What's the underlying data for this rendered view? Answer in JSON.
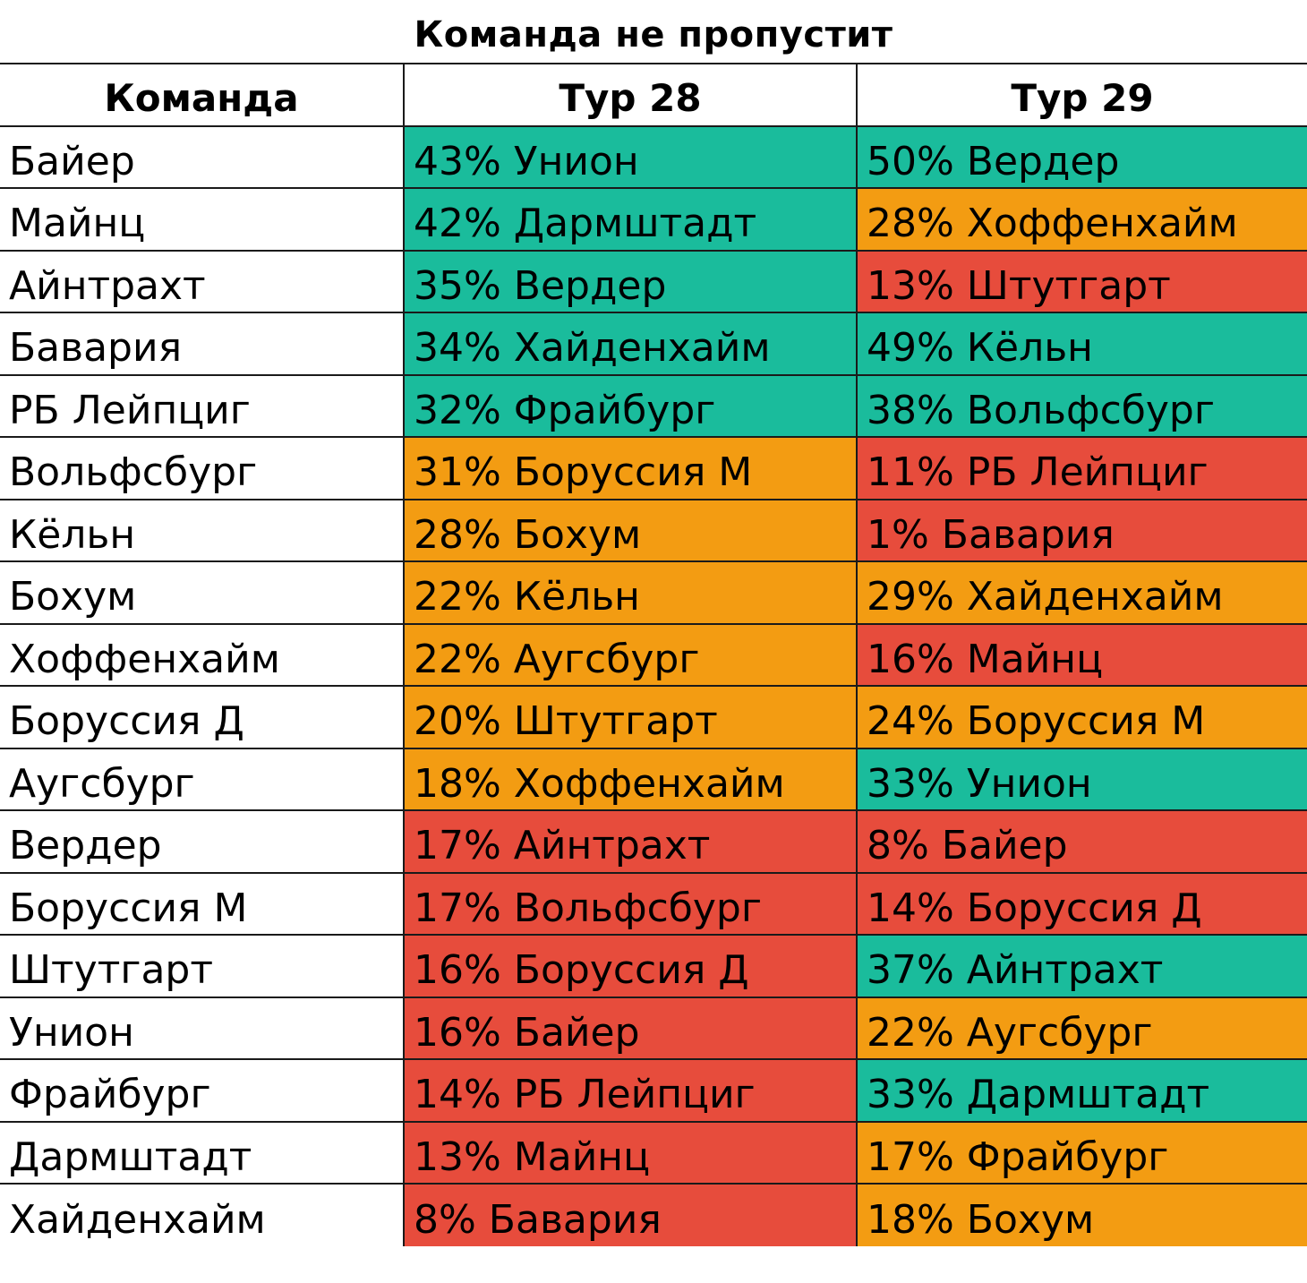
{
  "title": "Команда не пропустит",
  "colors": {
    "green": "#1abc9c",
    "orange": "#f39c12",
    "red": "#e74c3c"
  },
  "headers": [
    "Команда",
    "Тур 28",
    "Тур 29"
  ],
  "rows": [
    {
      "team": "Байер",
      "r28": "43% Унион",
      "c28": "green",
      "r29": "50% Вердер",
      "c29": "green"
    },
    {
      "team": "Майнц",
      "r28": "42% Дармштадт",
      "c28": "green",
      "r29": "28% Хоффенхайм",
      "c29": "orange"
    },
    {
      "team": "Айнтрахт",
      "r28": "35% Вердер",
      "c28": "green",
      "r29": "13% Штутгарт",
      "c29": "red"
    },
    {
      "team": "Бавария",
      "r28": "34% Хайденхайм",
      "c28": "green",
      "r29": "49% Кёльн",
      "c29": "green"
    },
    {
      "team": "РБ Лейпциг",
      "r28": "32% Фрайбург",
      "c28": "green",
      "r29": "38% Вольфсбург",
      "c29": "green"
    },
    {
      "team": "Вольфсбург",
      "r28": "31% Боруссия М",
      "c28": "orange",
      "r29": "11% РБ Лейпциг",
      "c29": "red"
    },
    {
      "team": "Кёльн",
      "r28": "28% Бохум",
      "c28": "orange",
      "r29": "1% Бавария",
      "c29": "red"
    },
    {
      "team": "Бохум",
      "r28": "22% Кёльн",
      "c28": "orange",
      "r29": "29% Хайденхайм",
      "c29": "orange"
    },
    {
      "team": "Хоффенхайм",
      "r28": "22% Аугсбург",
      "c28": "orange",
      "r29": "16% Майнц",
      "c29": "red"
    },
    {
      "team": "Боруссия Д",
      "r28": "20% Штутгарт",
      "c28": "orange",
      "r29": "24% Боруссия М",
      "c29": "orange"
    },
    {
      "team": "Аугсбург",
      "r28": "18% Хоффенхайм",
      "c28": "orange",
      "r29": "33% Унион",
      "c29": "green"
    },
    {
      "team": "Вердер",
      "r28": "17% Айнтрахт",
      "c28": "red",
      "r29": "8% Байер",
      "c29": "red"
    },
    {
      "team": "Боруссия М",
      "r28": "17% Вольфсбург",
      "c28": "red",
      "r29": "14% Боруссия Д",
      "c29": "red"
    },
    {
      "team": "Штутгарт",
      "r28": "16% Боруссия Д",
      "c28": "red",
      "r29": "37% Айнтрахт",
      "c29": "green"
    },
    {
      "team": "Унион",
      "r28": "16% Байер",
      "c28": "red",
      "r29": "22% Аугсбург",
      "c29": "orange"
    },
    {
      "team": "Фрайбург",
      "r28": "14% РБ Лейпциг",
      "c28": "red",
      "r29": "33% Дармштадт",
      "c29": "green"
    },
    {
      "team": "Дармштадт",
      "r28": "13% Майнц",
      "c28": "red",
      "r29": "17% Фрайбург",
      "c29": "orange"
    },
    {
      "team": "Хайденхайм",
      "r28": "8% Бавария",
      "c28": "red",
      "r29": "18%  Бохум",
      "c29": "orange"
    }
  ]
}
